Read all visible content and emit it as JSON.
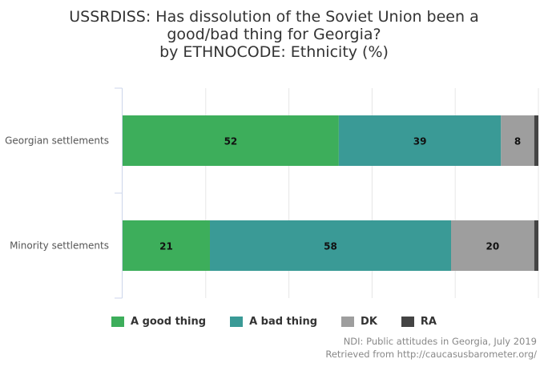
{
  "chart_data": {
    "type": "bar",
    "orientation": "horizontal",
    "stacked": true,
    "title": [
      "USSRDISS: Has dissolution of the Soviet Union been a",
      "good/bad thing for Georgia?",
      "by ETHNOCODE: Ethnicity (%)"
    ],
    "categories": [
      "Georgian settlements",
      "Minority settlements"
    ],
    "series": [
      {
        "name": "A good thing",
        "color": "#3dae5b",
        "values": [
          52,
          21
        ]
      },
      {
        "name": "A bad thing",
        "color": "#3a9a96",
        "values": [
          39,
          58
        ]
      },
      {
        "name": "DK",
        "color": "#9e9e9e",
        "values": [
          8,
          20
        ]
      },
      {
        "name": "RA",
        "color": "#444444",
        "values": [
          1,
          1
        ]
      }
    ],
    "data_labels": [
      [
        "52",
        "39",
        "8",
        ""
      ],
      [
        "21",
        "58",
        "20",
        ""
      ]
    ],
    "xlim": [
      0,
      100
    ],
    "grid": true,
    "legend_position": "bottom"
  },
  "credits": {
    "line1": "NDI: Public attitudes in Georgia, July 2019",
    "line2": "Retrieved from http://caucasusbarometer.org/"
  }
}
